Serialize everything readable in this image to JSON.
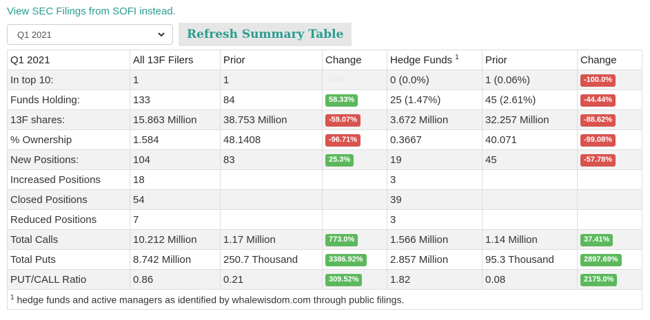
{
  "header": {
    "link_text": "View SEC Filings from SOFI instead.",
    "quarter_select": "Q1 2021",
    "refresh_label": "Refresh Summary Table"
  },
  "table": {
    "columns": [
      "Q1 2021",
      "All 13F Filers",
      "Prior",
      "Change",
      "Hedge Funds",
      "Prior",
      "Change"
    ],
    "hedge_sup": "1",
    "rows": [
      {
        "label": "In top 10:",
        "all": "1",
        "prior": "1",
        "change": {
          "text": "0.0%",
          "type": "zero"
        },
        "hf": "0 (0.0%)",
        "hf_prior": "1 (0.06%)",
        "hf_change": {
          "text": "-100.0%",
          "type": "neg"
        }
      },
      {
        "label": "Funds Holding:",
        "all": "133",
        "prior": "84",
        "change": {
          "text": "58.33%",
          "type": "pos"
        },
        "hf": "25 (1.47%)",
        "hf_prior": "45 (2.61%)",
        "hf_change": {
          "text": "-44.44%",
          "type": "neg"
        }
      },
      {
        "label": "13F shares:",
        "all": "15.863 Million",
        "prior": "38.753 Million",
        "change": {
          "text": "-59.07%",
          "type": "neg"
        },
        "hf": "3.672 Million",
        "hf_prior": "32.257 Million",
        "hf_change": {
          "text": "-88.62%",
          "type": "neg"
        }
      },
      {
        "label": "% Ownership",
        "all": "1.584",
        "prior": "48.1408",
        "change": {
          "text": "-96.71%",
          "type": "neg"
        },
        "hf": "0.3667",
        "hf_prior": "40.071",
        "hf_change": {
          "text": "-99.08%",
          "type": "neg"
        }
      },
      {
        "label": "New Positions:",
        "all": "104",
        "prior": "83",
        "change": {
          "text": "25.3%",
          "type": "pos"
        },
        "hf": "19",
        "hf_prior": "45",
        "hf_change": {
          "text": "-57.78%",
          "type": "neg"
        }
      },
      {
        "label": "Increased Positions",
        "all": "18",
        "prior": "",
        "change": null,
        "hf": "3",
        "hf_prior": "",
        "hf_change": null
      },
      {
        "label": "Closed Positions",
        "all": "54",
        "prior": "",
        "change": null,
        "hf": "39",
        "hf_prior": "",
        "hf_change": null
      },
      {
        "label": "Reduced Positions",
        "all": "7",
        "prior": "",
        "change": null,
        "hf": "3",
        "hf_prior": "",
        "hf_change": null
      },
      {
        "label": "Total Calls",
        "all": "10.212 Million",
        "prior": "1.17 Million",
        "change": {
          "text": "773.0%",
          "type": "pos"
        },
        "hf": "1.566 Million",
        "hf_prior": "1.14 Million",
        "hf_change": {
          "text": "37.41%",
          "type": "pos"
        }
      },
      {
        "label": "Total Puts",
        "all": "8.742 Million",
        "prior": "250.7 Thousand",
        "change": {
          "text": "3386.92%",
          "type": "pos"
        },
        "hf": "2.857 Million",
        "hf_prior": "95.3 Thousand",
        "hf_change": {
          "text": "2897.69%",
          "type": "pos"
        }
      },
      {
        "label": "PUT/CALL Ratio",
        "all": "0.86",
        "prior": "0.21",
        "change": {
          "text": "309.52%",
          "type": "pos"
        },
        "hf": "1.82",
        "hf_prior": "0.08",
        "hf_change": {
          "text": "2175.0%",
          "type": "pos"
        }
      }
    ],
    "footnote_sup": "1",
    "footnote": " hedge funds and active managers as identified by whalewisdom.com through public filings."
  }
}
